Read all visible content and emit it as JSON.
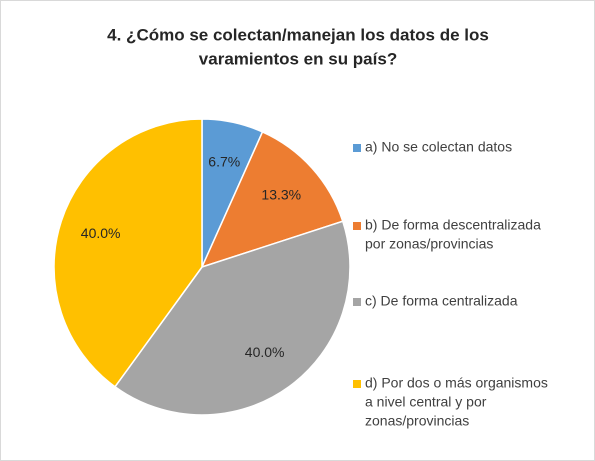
{
  "chart_data": {
    "type": "pie",
    "title": [
      "4. ¿Cómo se colectan/manejan los datos de los",
      "varamientos en su país?"
    ],
    "categories": [
      [
        "a) No se colectan datos"
      ],
      [
        "b) De forma descentralizada",
        "por zonas/provincias"
      ],
      [
        "c) De forma centralizada"
      ],
      [
        "d) Por dos o más organismos",
        "a nivel central y por",
        "zonas/provincias"
      ]
    ],
    "values": [
      6.7,
      13.3,
      40.0,
      40.0
    ],
    "value_labels": [
      "6.7%",
      "13.3%",
      "40.0%",
      "40.0%"
    ],
    "colors": [
      "#5b9bd5",
      "#ed7d31",
      "#a5a5a5",
      "#ffc000"
    ],
    "legend": "right"
  }
}
